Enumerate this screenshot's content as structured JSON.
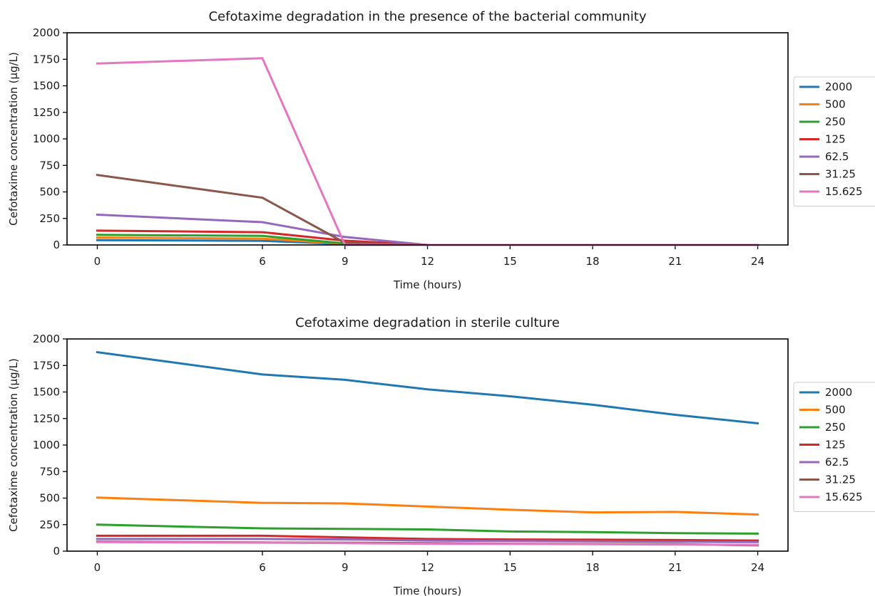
{
  "chart_data": [
    {
      "type": "line",
      "title": "Cefotaxime degradation in the presence of the bacterial community",
      "xlabel": "Time (hours)",
      "ylabel": "Cefotaxime concentration (μg/L)",
      "x": [
        0,
        6,
        9,
        12,
        24
      ],
      "xticks": [
        "0",
        "6",
        "9",
        "12",
        "15",
        "18",
        "21",
        "24"
      ],
      "yticks": [
        "0",
        "250",
        "500",
        "750",
        "1000",
        "1250",
        "1500",
        "1750",
        "2000"
      ],
      "xlim": [
        -1.1,
        25.1
      ],
      "ylim": [
        0,
        2000
      ],
      "legend_position": "right",
      "series": [
        {
          "name": "2000",
          "color": "#1f77b4",
          "values": [
            45,
            38,
            10,
            0,
            0
          ]
        },
        {
          "name": "500",
          "color": "#ff7f0e",
          "values": [
            70,
            60,
            12,
            0,
            0
          ]
        },
        {
          "name": "250",
          "color": "#2ca02c",
          "values": [
            95,
            85,
            14,
            0,
            0
          ]
        },
        {
          "name": "125",
          "color": "#d62728",
          "values": [
            135,
            120,
            40,
            0,
            0
          ]
        },
        {
          "name": "62.5",
          "color": "#9467bd",
          "values": [
            285,
            215,
            75,
            0,
            0
          ]
        },
        {
          "name": "31.25",
          "color": "#8c564b",
          "values": [
            660,
            445,
            20,
            0,
            0
          ]
        },
        {
          "name": "15.625",
          "color": "#e377c2",
          "values": [
            1710,
            1760,
            0,
            0,
            0
          ]
        }
      ]
    },
    {
      "type": "line",
      "title": "Cefotaxime degradation in sterile culture",
      "xlabel": "Time (hours)",
      "ylabel": "Cefotaxime concentration (μg/L)",
      "x": [
        0,
        6,
        9,
        12,
        15,
        18,
        21,
        24
      ],
      "xticks": [
        "0",
        "6",
        "9",
        "12",
        "15",
        "18",
        "21",
        "24"
      ],
      "yticks": [
        "0",
        "250",
        "500",
        "750",
        "1000",
        "1250",
        "1500",
        "1750",
        "2000"
      ],
      "xlim": [
        -1.1,
        25.1
      ],
      "ylim": [
        0,
        2000
      ],
      "legend_position": "right",
      "series": [
        {
          "name": "2000",
          "color": "#1f77b4",
          "values": [
            1875,
            1665,
            1615,
            1525,
            1460,
            1380,
            1285,
            1205
          ]
        },
        {
          "name": "500",
          "color": "#ff7f0e",
          "values": [
            505,
            455,
            450,
            420,
            390,
            365,
            370,
            345
          ]
        },
        {
          "name": "250",
          "color": "#2ca02c",
          "values": [
            250,
            215,
            210,
            205,
            185,
            180,
            170,
            165
          ]
        },
        {
          "name": "125",
          "color": "#d62728",
          "values": [
            145,
            145,
            130,
            115,
            110,
            108,
            105,
            100
          ]
        },
        {
          "name": "62.5",
          "color": "#9467bd",
          "values": [
            115,
            115,
            110,
            100,
            95,
            92,
            88,
            85
          ]
        },
        {
          "name": "31.25",
          "color": "#8c564b",
          "values": [
            90,
            82,
            80,
            75,
            70,
            68,
            65,
            55
          ]
        },
        {
          "name": "15.625",
          "color": "#e377c2",
          "values": [
            85,
            80,
            75,
            70,
            68,
            66,
            62,
            60
          ]
        }
      ]
    }
  ]
}
